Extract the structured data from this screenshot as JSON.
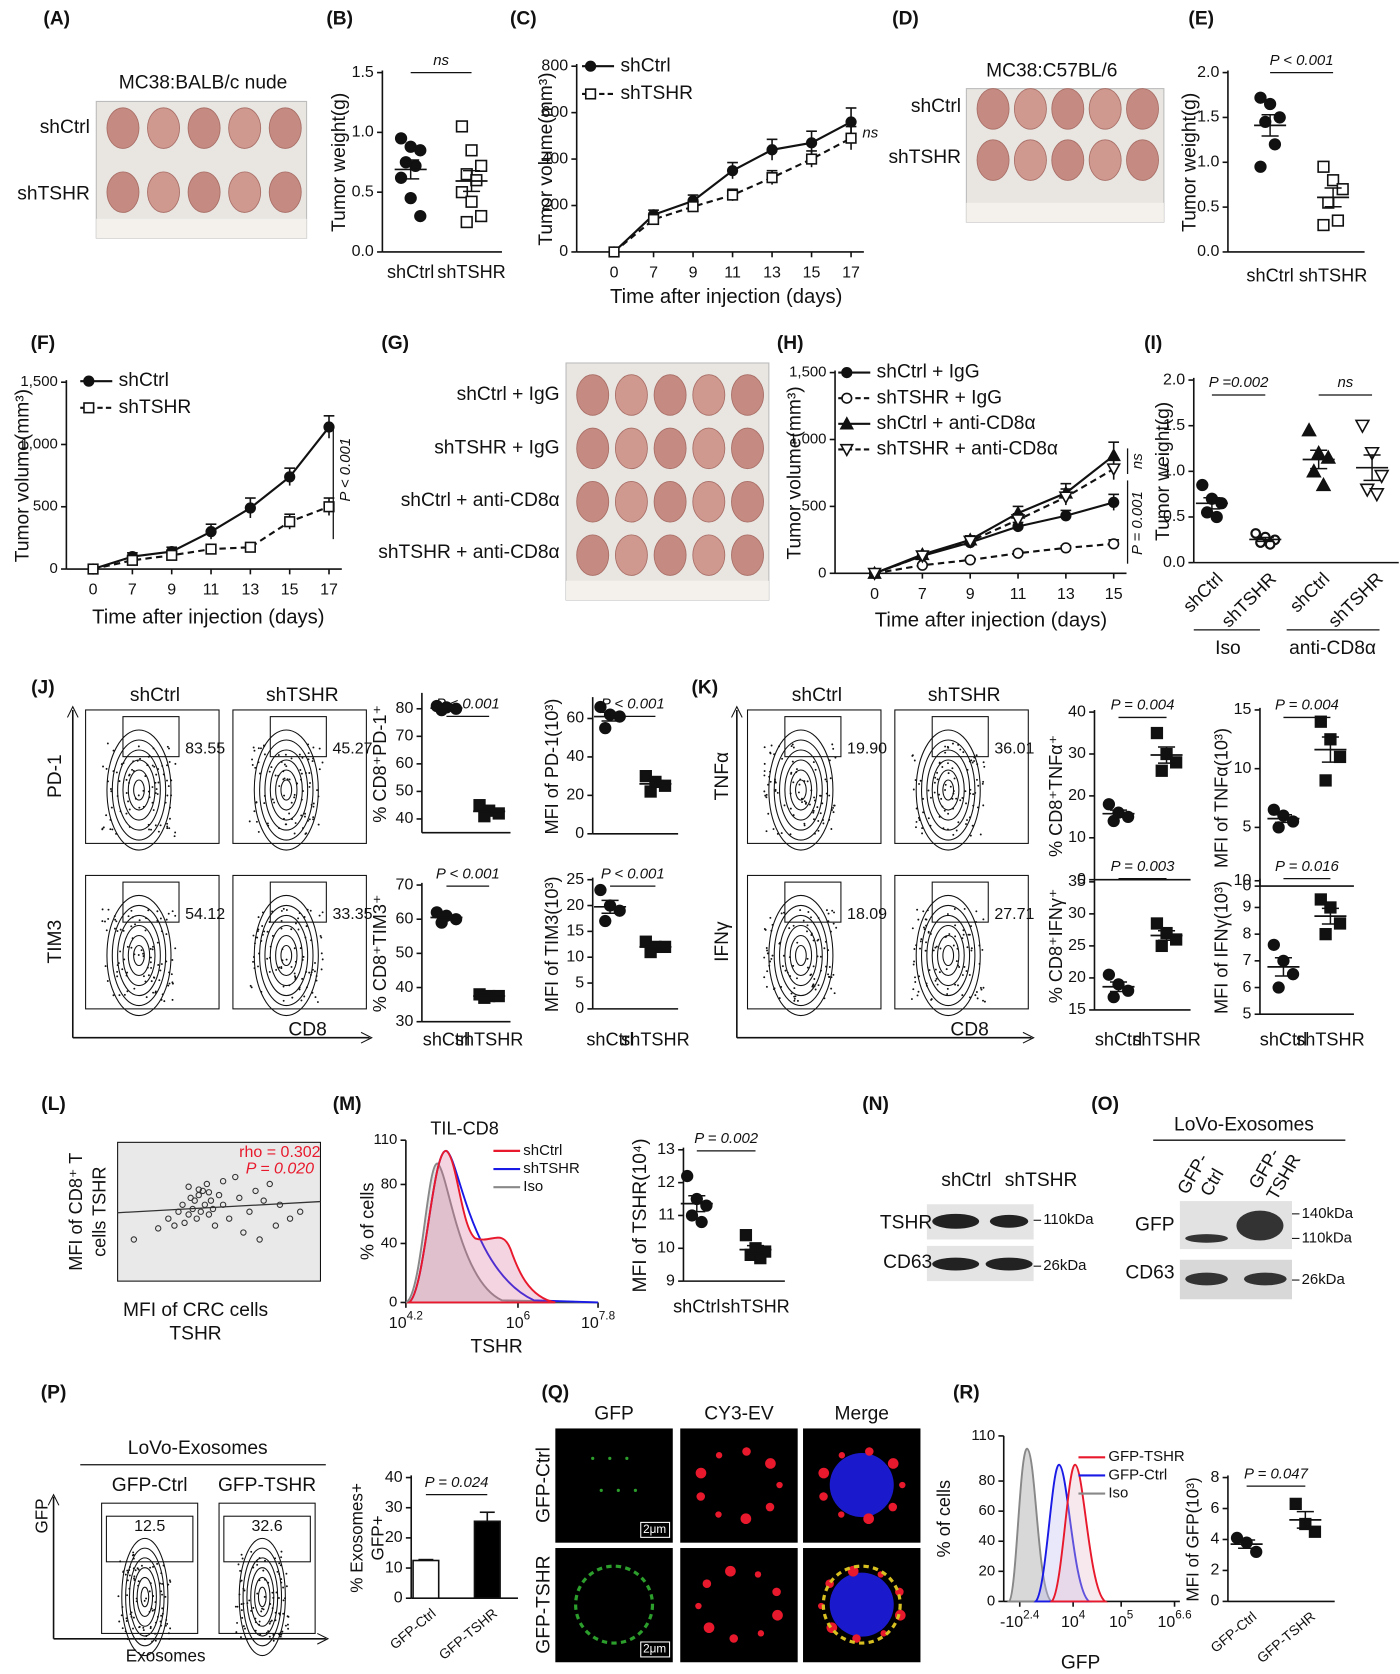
{
  "panel_labels": [
    "(A)",
    "(B)",
    "(C)",
    "(D)",
    "(E)",
    "(F)",
    "(G)",
    "(H)",
    "(I)",
    "(J)",
    "(K)",
    "(L)",
    "(M)",
    "(N)",
    "(O)",
    "(P)",
    "(Q)",
    "(R)"
  ],
  "A": {
    "title": "MC38:BALB/c nude",
    "rows": [
      "shCtrl",
      "shTSHR"
    ]
  },
  "D": {
    "title": "MC38:C57BL/6",
    "rows": [
      "shCtrl",
      "shTSHR"
    ]
  },
  "G": {
    "rows": [
      "shCtrl + IgG",
      "shTSHR + IgG",
      "shCtrl + anti-CD8α",
      "shTSHR + anti-CD8α"
    ]
  },
  "I_groups": [
    "Iso",
    "anti-CD8α"
  ],
  "J_flow": {
    "columns": [
      "shCtrl",
      "shTSHR"
    ],
    "rows": [
      "PD-1",
      "TIM3"
    ],
    "x_label": "CD8",
    "gates": [
      "83.55",
      "45.27",
      "54.12",
      "33.35"
    ]
  },
  "K_flow": {
    "columns": [
      "shCtrl",
      "shTSHR"
    ],
    "rows": [
      "TNFα",
      "IFNγ"
    ],
    "x_label": "CD8",
    "gates": [
      "19.90",
      "36.01",
      "18.09",
      "27.71"
    ]
  },
  "L": {
    "x_label": [
      "MFI of CRC cells",
      "TSHR"
    ],
    "y_label": [
      "MFI of CD8⁺ T",
      "cells TSHR"
    ],
    "rho": "rho = 0.302",
    "p": "P = 0.020",
    "x": [
      8,
      20,
      25,
      28,
      30,
      32,
      33,
      35,
      36,
      37,
      38,
      39,
      40,
      41,
      42,
      43,
      44,
      45,
      46,
      47,
      48,
      50,
      52,
      55,
      58,
      60,
      62,
      65,
      68,
      70,
      72,
      75,
      78,
      80,
      85,
      90,
      35,
      40,
      45,
      52
    ],
    "y": [
      30,
      38,
      45,
      40,
      50,
      55,
      42,
      48,
      60,
      52,
      58,
      45,
      62,
      50,
      65,
      55,
      70,
      48,
      58,
      52,
      40,
      62,
      55,
      45,
      75,
      60,
      35,
      50,
      65,
      30,
      58,
      70,
      40,
      55,
      45,
      50,
      68,
      66,
      64,
      72
    ],
    "xlim": [
      0,
      100
    ],
    "ylim": [
      0,
      100
    ]
  },
  "M_hist": {
    "title": "TIL-CD8",
    "y_label": "% of cells",
    "x_label": "TSHR",
    "ylim": [
      0,
      110
    ],
    "yticks": [
      0,
      40,
      80,
      110
    ],
    "xticks": [
      {
        "base": "10",
        "exp": "4.2"
      },
      {
        "base": "10",
        "exp": "6"
      },
      {
        "base": "10",
        "exp": "7.8"
      }
    ],
    "legend": [
      {
        "name": "shCtrl",
        "color": "#e8192c"
      },
      {
        "name": "shTSHR",
        "color": "#1a1ae6"
      },
      {
        "name": "Iso",
        "color": "#888888"
      }
    ]
  },
  "N": {
    "columns": [
      "shCtrl",
      "shTSHR"
    ],
    "rows": [
      "TSHR",
      "CD63"
    ],
    "markers": [
      "110kDa",
      "26kDa"
    ]
  },
  "O": {
    "title": "LoVo-Exosomes",
    "columns": [
      [
        "GFP-",
        "Ctrl"
      ],
      [
        "GFP-",
        "TSHR"
      ]
    ],
    "rows": [
      "GFP",
      "CD63"
    ],
    "markers": [
      "140kDa",
      "110kDa",
      "26kDa"
    ]
  },
  "P_flow": {
    "title": "LoVo-Exosomes",
    "columns": [
      "GFP-Ctrl",
      "GFP-TSHR"
    ],
    "gates": [
      "12.5",
      "32.6"
    ],
    "y_label": "GFP",
    "x_label": "Exosomes"
  },
  "Q": {
    "columns": [
      "GFP",
      "CY3-EV",
      "Merge"
    ],
    "rows": [
      "GFP-Ctrl",
      "GFP-TSHR"
    ],
    "scale": "2μm"
  },
  "R_hist": {
    "y_label": "% of cells",
    "x_label": "GFP",
    "ylim": [
      0,
      110
    ],
    "yticks": [
      0,
      20,
      40,
      60,
      80,
      110
    ],
    "xticks": [
      {
        "base": "-10",
        "exp": "2.4"
      },
      {
        "base": "10",
        "exp": "4"
      },
      {
        "base": "10",
        "exp": "5"
      },
      {
        "base": "10",
        "exp": "6.6"
      }
    ],
    "legend": [
      {
        "name": "GFP-TSHR",
        "color": "#e8192c"
      },
      {
        "name": "GFP-Ctrl",
        "color": "#1a1ae6"
      },
      {
        "name": "Iso",
        "color": "#888888"
      }
    ]
  },
  "chart_data": [
    {
      "type": "dot",
      "ylabel": "Tumor weight(g)",
      "ylim": [
        0,
        1.5
      ],
      "yticks": [
        {
          "value": 0,
          "label": "0.0"
        },
        0.5,
        {
          "value": 1,
          "label": "1.0"
        },
        1.5
      ],
      "categories": [
        "shCtrl",
        "shTSHR"
      ],
      "markers": [
        "circle",
        "square-open"
      ],
      "values": [
        [
          0.95,
          0.88,
          0.85,
          0.75,
          0.72,
          0.62,
          0.45,
          0.3
        ],
        [
          1.05,
          0.85,
          0.72,
          0.65,
          0.6,
          0.5,
          0.42,
          0.3,
          0.25
        ]
      ],
      "annotations": [
        "ns"
      ]
    },
    {
      "type": "line",
      "ylabel": "Tumor volume(mm³)",
      "xlabel": "Time after injection (days)",
      "ylim": [
        0,
        800
      ],
      "yticks": [
        0,
        200,
        400,
        600,
        800
      ],
      "categories": [
        "0",
        "7",
        "9",
        "11",
        "13",
        "15",
        "17"
      ],
      "series": [
        {
          "name": "shCtrl",
          "marker": "circle",
          "dash": false,
          "values": [
            0,
            160,
            220,
            350,
            440,
            470,
            560
          ],
          "errors": [
            0,
            20,
            25,
            35,
            45,
            50,
            60
          ]
        },
        {
          "name": "shTSHR",
          "marker": "square-open",
          "dash": true,
          "values": [
            0,
            140,
            195,
            245,
            320,
            400,
            490
          ],
          "errors": [
            0,
            15,
            20,
            25,
            30,
            35,
            50
          ]
        }
      ],
      "annotations": [
        "ns"
      ]
    },
    {
      "type": "dot",
      "ylabel": "Tumor weight(g)",
      "ylim": [
        0,
        2
      ],
      "yticks": [
        {
          "value": 0,
          "label": "0.0"
        },
        0.5,
        {
          "value": 1,
          "label": "1.0"
        },
        1.5,
        {
          "value": 2,
          "label": "2.0"
        }
      ],
      "categories": [
        "shCtrl",
        "shTSHR"
      ],
      "markers": [
        "circle",
        "square-open"
      ],
      "values": [
        [
          1.72,
          1.65,
          1.5,
          1.45,
          1.2,
          0.95
        ],
        [
          0.95,
          0.8,
          0.7,
          0.55,
          0.35,
          0.3
        ]
      ],
      "annotations": [
        "P < 0.001"
      ]
    },
    {
      "type": "line",
      "ylabel": "Tumor volume(mm³)",
      "xlabel": "Time after injection (days)",
      "ylim": [
        0,
        1500
      ],
      "yticks": [
        0,
        500,
        {
          "value": 1000,
          "label": "1,000"
        },
        {
          "value": 1500,
          "label": "1,500"
        }
      ],
      "categories": [
        "0",
        "7",
        "9",
        "11",
        "13",
        "15",
        "17"
      ],
      "series": [
        {
          "name": "shCtrl",
          "marker": "circle",
          "dash": false,
          "values": [
            0,
            100,
            140,
            300,
            490,
            740,
            1140
          ],
          "errors": [
            0,
            30,
            35,
            60,
            80,
            70,
            90
          ]
        },
        {
          "name": "shTSHR",
          "marker": "square-open",
          "dash": true,
          "values": [
            0,
            70,
            110,
            160,
            175,
            380,
            500
          ],
          "errors": [
            0,
            20,
            25,
            25,
            30,
            60,
            70
          ]
        }
      ],
      "annotations": [
        "P < 0.001"
      ]
    },
    {
      "type": "line",
      "ylabel": "Tumor volume(mm³)",
      "xlabel": "Time after injection (days)",
      "ylim": [
        0,
        1500
      ],
      "yticks": [
        0,
        500,
        {
          "value": 1000,
          "label": "1,000"
        },
        {
          "value": 1500,
          "label": "1,500"
        }
      ],
      "categories": [
        "0",
        "7",
        "9",
        "11",
        "13",
        "15"
      ],
      "series": [
        {
          "name": "shCtrl + IgG",
          "marker": "circle",
          "dash": false,
          "values": [
            0,
            130,
            230,
            350,
            430,
            530
          ],
          "errors": [
            0,
            15,
            20,
            30,
            40,
            60
          ]
        },
        {
          "name": "shTSHR + IgG",
          "marker": "circle-open",
          "dash": true,
          "values": [
            0,
            60,
            100,
            150,
            190,
            220
          ],
          "errors": [
            0,
            10,
            12,
            15,
            15,
            30
          ]
        },
        {
          "name": "shCtrl + anti-CD8α",
          "marker": "triangle",
          "dash": false,
          "values": [
            0,
            140,
            250,
            450,
            600,
            880
          ],
          "errors": [
            0,
            20,
            30,
            50,
            70,
            100
          ]
        },
        {
          "name": "shTSHR + anti-CD8α",
          "marker": "triangle-down-open",
          "dash": true,
          "values": [
            0,
            130,
            240,
            400,
            570,
            780
          ],
          "errors": [
            0,
            20,
            25,
            45,
            60,
            80
          ]
        }
      ],
      "annotations": [
        "ns",
        "P = 0.001"
      ]
    },
    {
      "type": "dot",
      "ylabel": "Tumor weight(g)",
      "ylim": [
        0,
        2
      ],
      "yticks": [
        {
          "value": 0,
          "label": "0.0"
        },
        0.5,
        {
          "value": 1,
          "label": "1.0"
        },
        1.5,
        {
          "value": 2,
          "label": "2.0"
        }
      ],
      "categories": [
        "shCtrl",
        "shTSHR",
        "shCtrl",
        "shTSHR"
      ],
      "markers": [
        "circle",
        "circle-small",
        "triangle",
        "triangle-down-open"
      ],
      "values": [
        [
          0.85,
          0.7,
          0.65,
          0.55,
          0.5
        ],
        [
          0.32,
          0.28,
          0.25,
          0.22,
          0.2
        ],
        [
          1.45,
          1.2,
          1.15,
          1.0,
          0.85
        ],
        [
          1.5,
          1.2,
          0.95,
          0.8,
          0.75
        ]
      ],
      "annotations": [
        "P =0.002",
        "ns"
      ]
    },
    {
      "type": "dot",
      "ylabel": "% CD8⁺PD-1⁺",
      "ylim": [
        35,
        85
      ],
      "yticks": [
        40,
        50,
        60,
        70,
        80
      ],
      "markers": [
        "circle",
        "square"
      ],
      "values": [
        [
          81,
          80.5,
          80,
          79.5
        ],
        [
          45,
          43,
          42,
          41
        ]
      ],
      "annotations": [
        "P < 0.001"
      ]
    },
    {
      "type": "dot",
      "ylabel": "MFI of PD-1(10³)",
      "ylim": [
        0,
        70
      ],
      "yticks": [
        0,
        20,
        40,
        60
      ],
      "markers": [
        "circle",
        "square"
      ],
      "values": [
        [
          66,
          62,
          61,
          55
        ],
        [
          30,
          27,
          25,
          22
        ]
      ],
      "annotations": [
        "P < 0.001"
      ]
    },
    {
      "type": "dot",
      "ylabel": "% CD8⁺TIM3⁺",
      "ylim": [
        30,
        70
      ],
      "yticks": [
        30,
        40,
        50,
        60,
        70
      ],
      "categories": [
        "shCtrl",
        "shTSHR"
      ],
      "markers": [
        "circle",
        "square"
      ],
      "values": [
        [
          62,
          61,
          60,
          59
        ],
        [
          38,
          37.5,
          37.5,
          37
        ]
      ],
      "annotations": [
        "P < 0.001"
      ]
    },
    {
      "type": "dot",
      "ylabel": "MFI of TIM3(10³)",
      "ylim": [
        0,
        25
      ],
      "yticks": [
        0,
        5,
        10,
        15,
        20,
        25
      ],
      "categories": [
        "shCtrl",
        "shTSHR"
      ],
      "markers": [
        "circle",
        "square"
      ],
      "values": [
        [
          23,
          20,
          19,
          17
        ],
        [
          13,
          12,
          12,
          11
        ]
      ],
      "annotations": [
        "P < 0.001"
      ]
    },
    {
      "type": "dot",
      "ylabel": "% CD8⁺TNFα⁺",
      "ylim": [
        0,
        40
      ],
      "yticks": [
        0,
        10,
        20,
        30,
        40
      ],
      "markers": [
        "circle",
        "square"
      ],
      "values": [
        [
          18,
          16,
          15,
          14
        ],
        [
          35,
          30,
          28,
          26
        ]
      ],
      "annotations": [
        "P = 0.004"
      ]
    },
    {
      "type": "dot",
      "ylabel": "MFI of TNFα(10³)",
      "ylim": [
        0,
        15
      ],
      "yticks": [
        0,
        5,
        10,
        15
      ],
      "markers": [
        "circle",
        "square"
      ],
      "values": [
        [
          6.5,
          6,
          5.5,
          5
        ],
        [
          14,
          12.5,
          11,
          9
        ]
      ],
      "annotations": [
        "P = 0.004"
      ]
    },
    {
      "type": "dot",
      "ylabel": "% CD8⁺IFNγ⁺",
      "ylim": [
        15,
        35
      ],
      "yticks": [
        15,
        20,
        25,
        30,
        35
      ],
      "categories": [
        "shCtrl",
        "shTSHR"
      ],
      "markers": [
        "circle",
        "square"
      ],
      "values": [
        [
          20.5,
          19,
          18,
          17
        ],
        [
          28.5,
          27,
          26,
          25
        ]
      ],
      "annotations": [
        "P = 0.003"
      ]
    },
    {
      "type": "dot",
      "ylabel": "MFI of IFNγ(10³)",
      "ylim": [
        5,
        10
      ],
      "yticks": [
        5,
        6,
        7,
        8,
        9,
        10
      ],
      "categories": [
        "shCtrl",
        "shTSHR"
      ],
      "markers": [
        "circle",
        "square"
      ],
      "values": [
        [
          7.6,
          7,
          6.5,
          6
        ],
        [
          9.3,
          9,
          8.4,
          8
        ]
      ],
      "annotations": [
        "P = 0.016"
      ]
    },
    {
      "type": "dot",
      "ylabel": "MFI of  TSHR(10⁴)",
      "ylim": [
        9,
        13
      ],
      "yticks": [
        9,
        10,
        11,
        12,
        13
      ],
      "categories": [
        "shCtrl",
        "shTSHR"
      ],
      "markers": [
        "circle",
        "square"
      ],
      "values": [
        [
          12.2,
          11.5,
          11.3,
          11,
          10.8
        ],
        [
          10.4,
          10,
          9.9,
          9.8,
          9.7
        ]
      ],
      "annotations": [
        "P = 0.002"
      ]
    },
    {
      "type": "bar",
      "ylabel": [
        "% Exosomes+",
        "GFP+"
      ],
      "ylim": [
        0,
        40
      ],
      "yticks": [
        0,
        10,
        20,
        30,
        40
      ],
      "categories": [
        "GFP-Ctrl",
        "GFP-TSHR"
      ],
      "colors": [
        "#ffffff",
        "#000000"
      ],
      "values": [
        12.5,
        25.5
      ],
      "errors": [
        0.3,
        3
      ],
      "annotations": [
        "P = 0.024"
      ]
    },
    {
      "type": "dot",
      "ylabel": "MFI of GFP(10³)",
      "ylim": [
        0,
        8
      ],
      "yticks": [
        0,
        2,
        4,
        6,
        8
      ],
      "categories": [
        "GFP-Ctrl",
        "GFP-TSHR"
      ],
      "markers": [
        "circle",
        "square"
      ],
      "values": [
        [
          4.1,
          3.8,
          3.2
        ],
        [
          6.3,
          5,
          4.5
        ]
      ],
      "annotations": [
        "P = 0.047"
      ]
    }
  ]
}
